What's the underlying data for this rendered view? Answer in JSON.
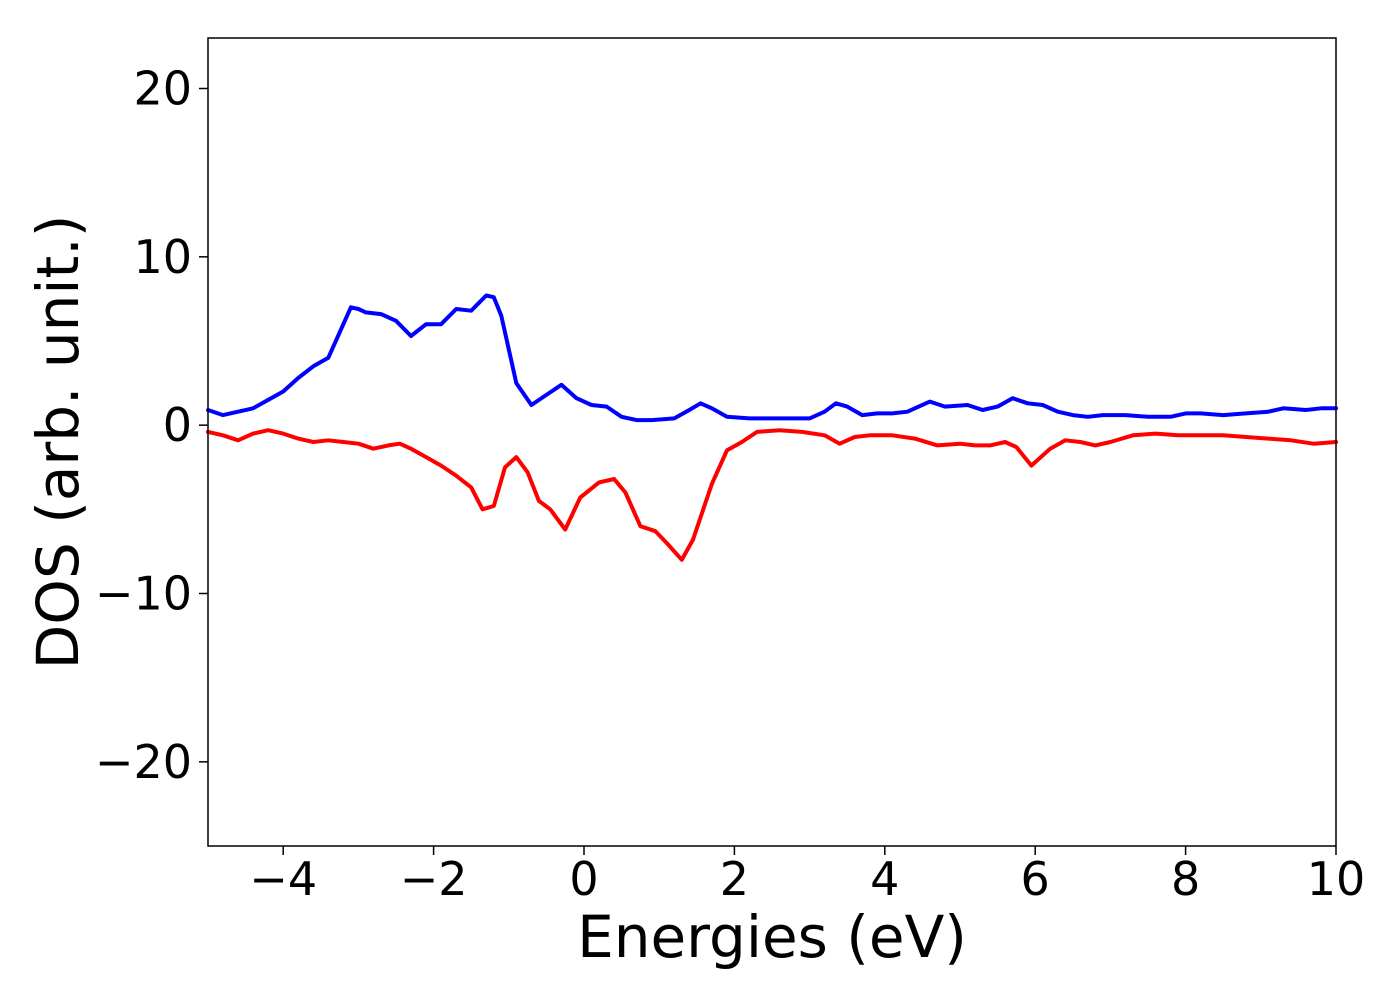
{
  "chart_data": {
    "type": "line",
    "title": "",
    "xlabel": "Energies (eV)",
    "ylabel": "DOS (arb. unit.)",
    "xlim": [
      -5,
      10
    ],
    "ylim": [
      -25,
      23
    ],
    "xticks": [
      -4,
      -2,
      0,
      2,
      4,
      6,
      8,
      10
    ],
    "xtick_labels": [
      "−4",
      "−2",
      "0",
      "2",
      "4",
      "6",
      "8",
      "10"
    ],
    "yticks": [
      -20,
      -10,
      0,
      10,
      20
    ],
    "ytick_labels": [
      "−20",
      "−10",
      "0",
      "10",
      "20"
    ],
    "grid": false,
    "legend": "none",
    "series": [
      {
        "color": "#0000ff",
        "points": [
          [
            -5.0,
            0.9
          ],
          [
            -4.8,
            0.6
          ],
          [
            -4.6,
            0.8
          ],
          [
            -4.4,
            1.0
          ],
          [
            -4.2,
            1.5
          ],
          [
            -4.0,
            2.0
          ],
          [
            -3.8,
            2.8
          ],
          [
            -3.6,
            3.5
          ],
          [
            -3.4,
            4.0
          ],
          [
            -3.25,
            5.5
          ],
          [
            -3.1,
            7.0
          ],
          [
            -3.0,
            6.9
          ],
          [
            -2.9,
            6.7
          ],
          [
            -2.7,
            6.6
          ],
          [
            -2.5,
            6.2
          ],
          [
            -2.3,
            5.3
          ],
          [
            -2.1,
            6.0
          ],
          [
            -1.9,
            6.0
          ],
          [
            -1.7,
            6.9
          ],
          [
            -1.5,
            6.8
          ],
          [
            -1.3,
            7.7
          ],
          [
            -1.2,
            7.6
          ],
          [
            -1.1,
            6.5
          ],
          [
            -1.0,
            4.5
          ],
          [
            -0.9,
            2.5
          ],
          [
            -0.7,
            1.2
          ],
          [
            -0.5,
            1.8
          ],
          [
            -0.3,
            2.4
          ],
          [
            -0.1,
            1.6
          ],
          [
            0.1,
            1.2
          ],
          [
            0.3,
            1.1
          ],
          [
            0.5,
            0.5
          ],
          [
            0.7,
            0.3
          ],
          [
            0.9,
            0.3
          ],
          [
            1.2,
            0.4
          ],
          [
            1.4,
            0.9
          ],
          [
            1.55,
            1.3
          ],
          [
            1.7,
            1.0
          ],
          [
            1.9,
            0.5
          ],
          [
            2.2,
            0.4
          ],
          [
            2.6,
            0.4
          ],
          [
            3.0,
            0.4
          ],
          [
            3.2,
            0.8
          ],
          [
            3.35,
            1.3
          ],
          [
            3.5,
            1.1
          ],
          [
            3.7,
            0.6
          ],
          [
            3.9,
            0.7
          ],
          [
            4.1,
            0.7
          ],
          [
            4.3,
            0.8
          ],
          [
            4.6,
            1.4
          ],
          [
            4.8,
            1.1
          ],
          [
            5.1,
            1.2
          ],
          [
            5.3,
            0.9
          ],
          [
            5.5,
            1.1
          ],
          [
            5.7,
            1.6
          ],
          [
            5.9,
            1.3
          ],
          [
            6.1,
            1.2
          ],
          [
            6.3,
            0.8
          ],
          [
            6.5,
            0.6
          ],
          [
            6.7,
            0.5
          ],
          [
            6.9,
            0.6
          ],
          [
            7.2,
            0.6
          ],
          [
            7.5,
            0.5
          ],
          [
            7.8,
            0.5
          ],
          [
            8.0,
            0.7
          ],
          [
            8.2,
            0.7
          ],
          [
            8.5,
            0.6
          ],
          [
            8.8,
            0.7
          ],
          [
            9.1,
            0.8
          ],
          [
            9.3,
            1.0
          ],
          [
            9.6,
            0.9
          ],
          [
            9.8,
            1.0
          ],
          [
            10.0,
            1.0
          ]
        ]
      },
      {
        "color": "#ff0000",
        "points": [
          [
            -5.0,
            -0.4
          ],
          [
            -4.8,
            -0.6
          ],
          [
            -4.6,
            -0.9
          ],
          [
            -4.4,
            -0.5
          ],
          [
            -4.2,
            -0.3
          ],
          [
            -4.0,
            -0.5
          ],
          [
            -3.8,
            -0.8
          ],
          [
            -3.6,
            -1.0
          ],
          [
            -3.4,
            -0.9
          ],
          [
            -3.2,
            -1.0
          ],
          [
            -3.0,
            -1.1
          ],
          [
            -2.8,
            -1.4
          ],
          [
            -2.6,
            -1.2
          ],
          [
            -2.45,
            -1.1
          ],
          [
            -2.3,
            -1.4
          ],
          [
            -2.1,
            -1.9
          ],
          [
            -1.9,
            -2.4
          ],
          [
            -1.7,
            -3.0
          ],
          [
            -1.5,
            -3.7
          ],
          [
            -1.35,
            -5.0
          ],
          [
            -1.2,
            -4.8
          ],
          [
            -1.05,
            -2.5
          ],
          [
            -0.9,
            -1.9
          ],
          [
            -0.75,
            -2.8
          ],
          [
            -0.6,
            -4.5
          ],
          [
            -0.45,
            -5.0
          ],
          [
            -0.25,
            -6.2
          ],
          [
            -0.05,
            -4.3
          ],
          [
            0.2,
            -3.4
          ],
          [
            0.4,
            -3.2
          ],
          [
            0.55,
            -4.0
          ],
          [
            0.75,
            -6.0
          ],
          [
            0.95,
            -6.3
          ],
          [
            1.1,
            -7.0
          ],
          [
            1.3,
            -8.0
          ],
          [
            1.45,
            -6.8
          ],
          [
            1.7,
            -3.5
          ],
          [
            1.9,
            -1.5
          ],
          [
            2.1,
            -1.0
          ],
          [
            2.3,
            -0.4
          ],
          [
            2.6,
            -0.3
          ],
          [
            2.9,
            -0.4
          ],
          [
            3.2,
            -0.6
          ],
          [
            3.4,
            -1.1
          ],
          [
            3.6,
            -0.7
          ],
          [
            3.8,
            -0.6
          ],
          [
            4.1,
            -0.6
          ],
          [
            4.4,
            -0.8
          ],
          [
            4.7,
            -1.2
          ],
          [
            5.0,
            -1.1
          ],
          [
            5.2,
            -1.2
          ],
          [
            5.4,
            -1.2
          ],
          [
            5.6,
            -1.0
          ],
          [
            5.75,
            -1.3
          ],
          [
            5.95,
            -2.4
          ],
          [
            6.2,
            -1.4
          ],
          [
            6.4,
            -0.9
          ],
          [
            6.6,
            -1.0
          ],
          [
            6.8,
            -1.2
          ],
          [
            7.0,
            -1.0
          ],
          [
            7.3,
            -0.6
          ],
          [
            7.6,
            -0.5
          ],
          [
            7.9,
            -0.6
          ],
          [
            8.2,
            -0.6
          ],
          [
            8.5,
            -0.6
          ],
          [
            8.8,
            -0.7
          ],
          [
            9.1,
            -0.8
          ],
          [
            9.4,
            -0.9
          ],
          [
            9.7,
            -1.1
          ],
          [
            10.0,
            -1.0
          ]
        ]
      }
    ]
  }
}
